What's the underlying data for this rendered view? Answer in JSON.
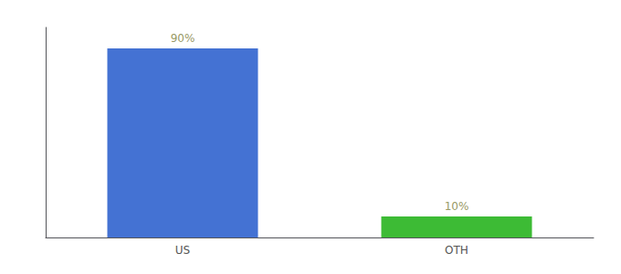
{
  "chart_data": {
    "type": "bar",
    "categories": [
      "US",
      "OTH"
    ],
    "values": [
      90,
      10
    ],
    "value_labels": [
      "90%",
      "10%"
    ],
    "colors": [
      "#4472d3",
      "#3dbb35"
    ],
    "ylim": [
      0,
      100
    ],
    "yticks": [],
    "tick_labels": "x",
    "grid": false,
    "data_labels": true
  }
}
